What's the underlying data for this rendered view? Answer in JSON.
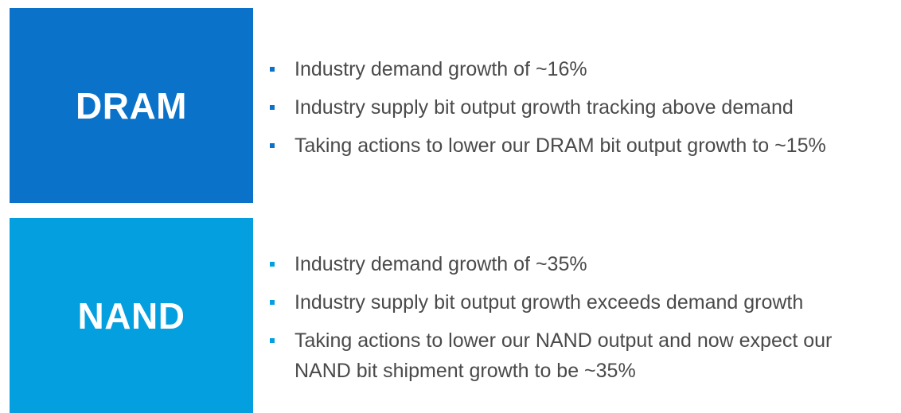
{
  "colors": {
    "dram_block": "#0b72c9",
    "nand_block": "#049fdf",
    "body_text": "#4a4a4a"
  },
  "sections": [
    {
      "title": "DRAM",
      "bullets": [
        "Industry demand growth of ~16%",
        "Industry supply bit output growth tracking above demand",
        "Taking actions to lower our DRAM bit output growth to ~15%"
      ]
    },
    {
      "title": "NAND",
      "bullets": [
        "Industry demand growth of ~35%",
        "Industry supply bit output growth exceeds demand growth",
        "Taking actions to lower our NAND output and now expect our NAND bit shipment growth to be ~35%"
      ]
    }
  ]
}
